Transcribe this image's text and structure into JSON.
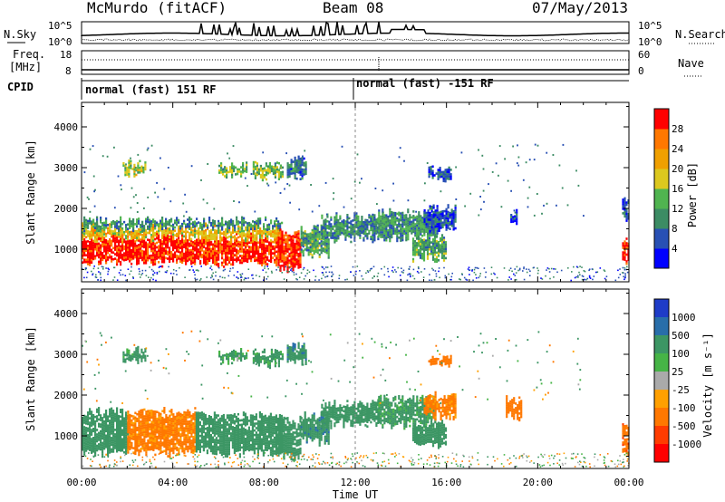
{
  "header": {
    "station": "McMurdo (fitACF)",
    "beam": "Beam 08",
    "date": "07/May/2013"
  },
  "noise_panel": {
    "left_label": "N.Sky",
    "right_label": "N.Search",
    "tick_top_left": "10^5",
    "tick_bottom_left": "10^0",
    "tick_top_right": "10^5",
    "tick_bottom_right": "10^0"
  },
  "freq_panel": {
    "left_label_line1": "Freq.",
    "left_label_line2": "[MHz]",
    "left_tick_top": "18",
    "left_tick_bottom": "8",
    "right_label": "Nave",
    "right_tick_top": "60",
    "right_tick_bottom": "0"
  },
  "cpid_panel": {
    "label": "CPID",
    "program_1": "normal (fast) 151 RF",
    "program_2": "normal (fast) -151 RF"
  },
  "time_axis": {
    "label": "Time UT",
    "ticks": [
      "00:00",
      "04:00",
      "08:00",
      "12:00",
      "16:00",
      "20:00",
      "00:00"
    ]
  },
  "range_axis": {
    "label": "Slant Range [km]",
    "ticks": [
      "1000",
      "2000",
      "3000",
      "4000"
    ]
  },
  "power_colorbar": {
    "label": "Power [dB]",
    "ticks": [
      "4",
      "8",
      "12",
      "16",
      "20",
      "24",
      "28"
    ],
    "colors": [
      "#0000ff",
      "#2850b4",
      "#3c8c64",
      "#50b450",
      "#dcc81e",
      "#f0a000",
      "#ff7800",
      "#ff0000"
    ]
  },
  "velocity_colorbar": {
    "label": "Velocity [m s⁻¹]",
    "ticks": [
      "1000",
      "500",
      "100",
      "25",
      "-25",
      "-100",
      "-500",
      "-1000"
    ],
    "colors": [
      "#1e3cc8",
      "#286eaa",
      "#3c9664",
      "#46b446",
      "#aaaaaa",
      "#ffa000",
      "#ff7800",
      "#ff3c00",
      "#ff0000"
    ]
  },
  "chart_data": [
    {
      "type": "heatmap",
      "title": "Power",
      "x_unit": "hours UT",
      "xlim": [
        0,
        24
      ],
      "ylim": [
        200,
        4600
      ],
      "color_range": [
        0,
        32
      ],
      "patches": [
        {
          "t": [
            0.0,
            8.8
          ],
          "r": [
            700,
            1300
          ],
          "value": 30
        },
        {
          "t": [
            0.0,
            8.8
          ],
          "r": [
            1300,
            1550
          ],
          "value": 20
        },
        {
          "t": [
            0.0,
            8.8
          ],
          "r": [
            1550,
            1700
          ],
          "value": 10
        },
        {
          "t": [
            8.6,
            9.6
          ],
          "r": [
            500,
            1400
          ],
          "value": 30
        },
        {
          "t": [
            9.6,
            10.8
          ],
          "r": [
            900,
            1500
          ],
          "value": 12
        },
        {
          "t": [
            10.5,
            13.0
          ],
          "r": [
            1300,
            1800
          ],
          "value": 10
        },
        {
          "t": [
            13.0,
            15.5
          ],
          "r": [
            1300,
            1900
          ],
          "value": 11
        },
        {
          "t": [
            14.5,
            16.0
          ],
          "r": [
            800,
            1300
          ],
          "value": 12
        },
        {
          "t": [
            15.0,
            16.4
          ],
          "r": [
            1500,
            2000
          ],
          "value": 6
        },
        {
          "t": [
            1.8,
            2.8
          ],
          "r": [
            2850,
            3100
          ],
          "value": 16
        },
        {
          "t": [
            6.0,
            7.2
          ],
          "r": [
            2850,
            3050
          ],
          "value": 14
        },
        {
          "t": [
            7.5,
            8.8
          ],
          "r": [
            2800,
            3050
          ],
          "value": 14
        },
        {
          "t": [
            9.0,
            9.8
          ],
          "r": [
            2800,
            3200
          ],
          "value": 8
        },
        {
          "t": [
            15.2,
            16.2
          ],
          "r": [
            2750,
            2950
          ],
          "value": 6
        },
        {
          "t": [
            18.8,
            19.1
          ],
          "r": [
            1600,
            1900
          ],
          "value": 6
        },
        {
          "t": [
            23.7,
            24.0
          ],
          "r": [
            700,
            1200
          ],
          "value": 30
        },
        {
          "t": [
            23.7,
            24.0
          ],
          "r": [
            1800,
            2200
          ],
          "value": 6
        }
      ]
    },
    {
      "type": "heatmap",
      "title": "Velocity",
      "x_unit": "hours UT",
      "xlim": [
        0,
        24
      ],
      "ylim": [
        200,
        4600
      ],
      "color_range": [
        -1000,
        1000
      ],
      "patches": [
        {
          "t": [
            0.0,
            2.0
          ],
          "r": [
            600,
            1600
          ],
          "value": 300
        },
        {
          "t": [
            2.0,
            5.0
          ],
          "r": [
            600,
            1600
          ],
          "value": -200
        },
        {
          "t": [
            5.0,
            8.8
          ],
          "r": [
            600,
            1500
          ],
          "value": 300
        },
        {
          "t": [
            8.6,
            9.6
          ],
          "r": [
            500,
            1400
          ],
          "value": 300
        },
        {
          "t": [
            9.6,
            10.8
          ],
          "r": [
            900,
            1500
          ],
          "value": 400
        },
        {
          "t": [
            10.5,
            13.0
          ],
          "r": [
            1300,
            1800
          ],
          "value": 300
        },
        {
          "t": [
            13.0,
            15.5
          ],
          "r": [
            1300,
            1900
          ],
          "value": 200
        },
        {
          "t": [
            14.5,
            16.0
          ],
          "r": [
            800,
            1300
          ],
          "value": 300
        },
        {
          "t": [
            15.0,
            16.4
          ],
          "r": [
            1500,
            2000
          ],
          "value": -200
        },
        {
          "t": [
            1.8,
            2.8
          ],
          "r": [
            2850,
            3100
          ],
          "value": 200
        },
        {
          "t": [
            6.0,
            7.2
          ],
          "r": [
            2850,
            3050
          ],
          "value": 150
        },
        {
          "t": [
            7.5,
            8.8
          ],
          "r": [
            2800,
            3050
          ],
          "value": 200
        },
        {
          "t": [
            9.0,
            9.8
          ],
          "r": [
            2800,
            3200
          ],
          "value": 400
        },
        {
          "t": [
            15.2,
            16.2
          ],
          "r": [
            2750,
            2950
          ],
          "value": -300
        },
        {
          "t": [
            18.6,
            19.3
          ],
          "r": [
            1500,
            1900
          ],
          "value": -300
        },
        {
          "t": [
            23.7,
            24.0
          ],
          "r": [
            600,
            1200
          ],
          "value": -400
        }
      ]
    }
  ]
}
